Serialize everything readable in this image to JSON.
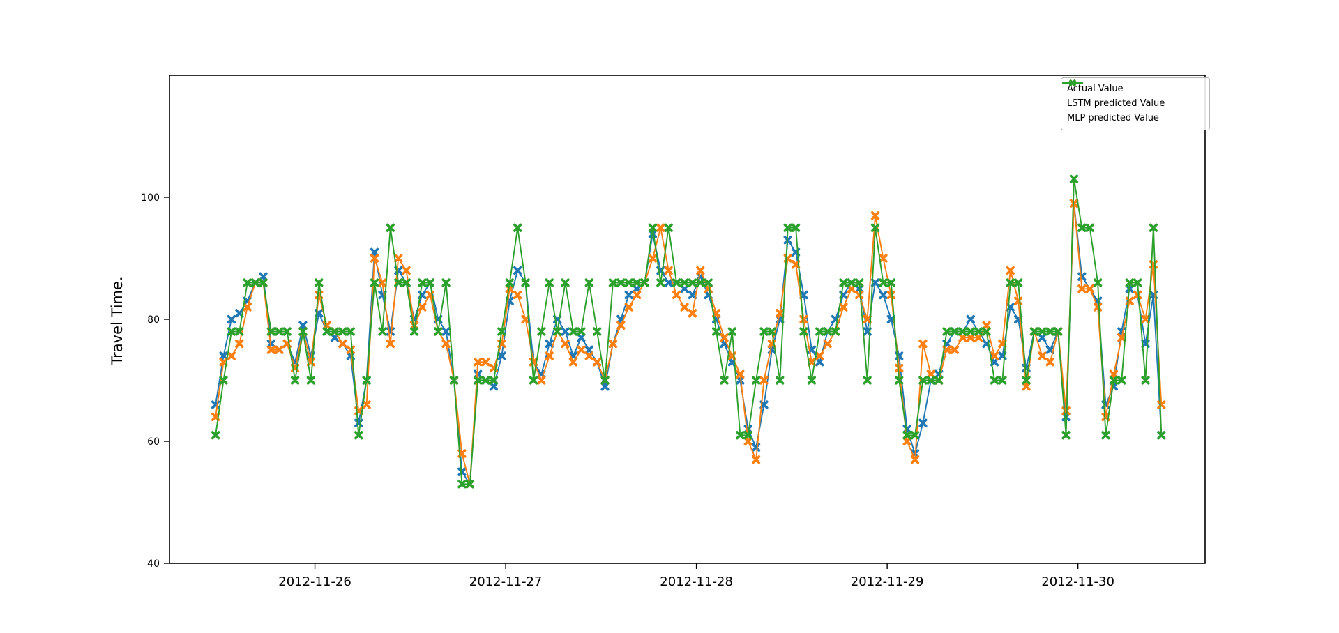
{
  "chart_data": {
    "type": "line",
    "title": "",
    "xlabel": "",
    "ylabel": "Travel Time.",
    "grid": false,
    "legend_position": "upper right",
    "ylim": [
      40,
      120
    ],
    "xlim": [
      -5.8,
      124.5
    ],
    "yticks": [
      40,
      60,
      80,
      100
    ],
    "xticks": [
      {
        "pos": 12.5,
        "label": "2012-11-26"
      },
      {
        "pos": 36.5,
        "label": "2012-11-27"
      },
      {
        "pos": 60.5,
        "label": "2012-11-28"
      },
      {
        "pos": 84.5,
        "label": "2012-11-29"
      },
      {
        "pos": 108.5,
        "label": "2012-11-30"
      }
    ],
    "x_description": "120 consecutive hourly samples from ~2012-11-25 12:00 to ~2012-11-30 11:00; x value = sample index",
    "series": [
      {
        "name": "Actual Value",
        "color": "#1f77b4",
        "marker": "X",
        "values": [
          66,
          74,
          80,
          81,
          83,
          86,
          87,
          76,
          75,
          76,
          73,
          79,
          74,
          81,
          78,
          77,
          76,
          74,
          63,
          70,
          91,
          84,
          78,
          88,
          86,
          80,
          84,
          86,
          80,
          78,
          70,
          55,
          53,
          71,
          70,
          69,
          74,
          83,
          88,
          86,
          73,
          71,
          76,
          80,
          78,
          74,
          77,
          75,
          73,
          69,
          76,
          80,
          84,
          85,
          86,
          94,
          88,
          86,
          86,
          85,
          84,
          87,
          84,
          80,
          76,
          73,
          70,
          62,
          59,
          66,
          75,
          80,
          93,
          91,
          84,
          75,
          73,
          78,
          80,
          84,
          86,
          85,
          78,
          86,
          84,
          80,
          74,
          62,
          58,
          63,
          70,
          71,
          76,
          78,
          78,
          80,
          78,
          76,
          73,
          74,
          82,
          80,
          72,
          78,
          77,
          75,
          78,
          64,
          99,
          87,
          85,
          83,
          66,
          69,
          78,
          85,
          84,
          76,
          84,
          61
        ]
      },
      {
        "name": "LSTM predicted Value",
        "color": "#ff7f0e",
        "marker": "X",
        "values": [
          64,
          73,
          74,
          76,
          82,
          86,
          86,
          75,
          75,
          76,
          72,
          78,
          73,
          84,
          79,
          78,
          76,
          75,
          65,
          66,
          90,
          86,
          76,
          90,
          88,
          79,
          82,
          84,
          78,
          76,
          70,
          58,
          53,
          73,
          73,
          72,
          76,
          85,
          84,
          80,
          73,
          70,
          74,
          78,
          76,
          73,
          75,
          74,
          73,
          70,
          76,
          79,
          82,
          84,
          86,
          90,
          95,
          88,
          84,
          82,
          81,
          88,
          85,
          81,
          77,
          74,
          71,
          60,
          57,
          70,
          76,
          81,
          90,
          89,
          80,
          73,
          74,
          76,
          78,
          82,
          85,
          84,
          80,
          97,
          90,
          84,
          72,
          60,
          57,
          76,
          71,
          70,
          75,
          75,
          77,
          77,
          77,
          79,
          74,
          76,
          88,
          83,
          69,
          78,
          74,
          73,
          78,
          65,
          99,
          85,
          85,
          82,
          64,
          71,
          77,
          83,
          84,
          80,
          89,
          66
        ]
      },
      {
        "name": "MLP predicted Value",
        "color": "#2ca02c",
        "marker": "X",
        "values": [
          61,
          70,
          78,
          78,
          86,
          86,
          86,
          78,
          78,
          78,
          70,
          78,
          70,
          86,
          78,
          78,
          78,
          78,
          61,
          70,
          86,
          78,
          95,
          86,
          86,
          78,
          86,
          86,
          78,
          86,
          70,
          53,
          53,
          70,
          70,
          70,
          78,
          86,
          95,
          86,
          70,
          78,
          86,
          78,
          86,
          78,
          78,
          86,
          78,
          70,
          86,
          86,
          86,
          86,
          86,
          95,
          86,
          95,
          86,
          86,
          86,
          86,
          86,
          78,
          70,
          78,
          61,
          61,
          70,
          78,
          78,
          70,
          95,
          95,
          78,
          70,
          78,
          78,
          78,
          86,
          86,
          86,
          70,
          95,
          86,
          86,
          70,
          61,
          61,
          70,
          70,
          70,
          78,
          78,
          78,
          78,
          78,
          78,
          70,
          70,
          86,
          86,
          70,
          78,
          78,
          78,
          78,
          61,
          103,
          95,
          95,
          86,
          61,
          70,
          70,
          86,
          86,
          70,
          95,
          61
        ]
      }
    ]
  }
}
